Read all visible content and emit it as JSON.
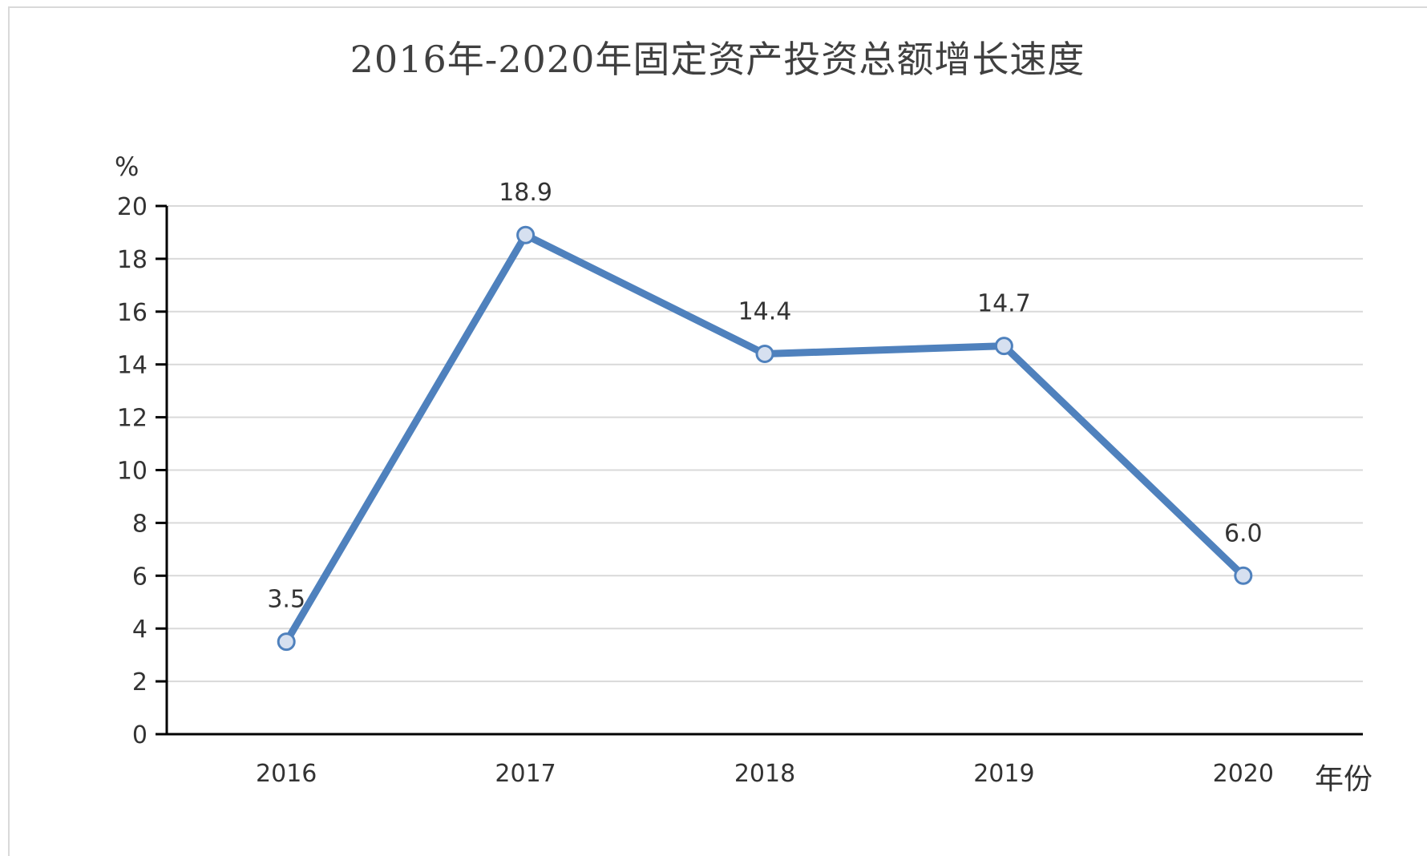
{
  "chart_data": {
    "type": "line",
    "title": "2016年-2020年固定资产投资总额增长速度",
    "ylabel": "%",
    "xlabel": "年份",
    "categories": [
      "2016",
      "2017",
      "2018",
      "2019",
      "2020"
    ],
    "series": [
      {
        "values": [
          3.5,
          18.9,
          14.4,
          14.7,
          6.0
        ],
        "data_labels": [
          "3.5",
          "18.9",
          "14.4",
          "14.7",
          "6.0"
        ]
      }
    ],
    "ylim": [
      0,
      20
    ],
    "yticks": [
      0,
      2,
      4,
      6,
      8,
      10,
      12,
      14,
      16,
      18,
      20
    ],
    "grid": true,
    "legend": "none",
    "colors": {
      "line": "#4f81bd",
      "marker_fill": "#d6e0f0",
      "grid": "#d9d9d9",
      "axis": "#000000"
    }
  }
}
